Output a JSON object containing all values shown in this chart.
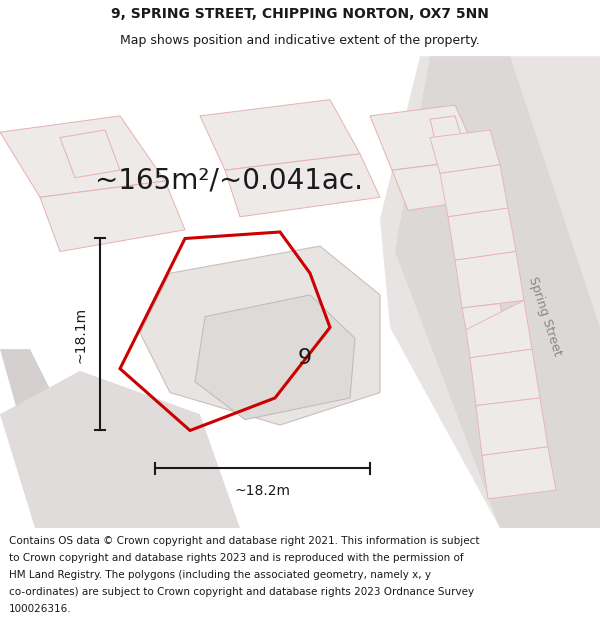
{
  "title_line1": "9, SPRING STREET, CHIPPING NORTON, OX7 5NN",
  "title_line2": "Map shows position and indicative extent of the property.",
  "area_text": "~165m²/~0.041ac.",
  "label_9": "9",
  "label_width": "~18.2m",
  "label_height": "~18.1m",
  "street_label": "Spring Street",
  "footer_lines": [
    "Contains OS data © Crown copyright and database right 2021. This information is subject",
    "to Crown copyright and database rights 2023 and is reproduced with the permission of",
    "HM Land Registry. The polygons (including the associated geometry, namely x, y",
    "co-ordinates) are subject to Crown copyright and database rights 2023 Ordnance Survey",
    "100026316."
  ],
  "map_bg": "#ffffff",
  "road_outline_color": "#e8b0b0",
  "grey_fill": "#e0dada",
  "light_grey_fill": "#eeeaea",
  "dark_grey_fill": "#d5cfcf",
  "white_fill": "#f8f8f8",
  "red_color": "#cc0000",
  "black_color": "#1a1a1a",
  "grey_text": "#aaaaaa",
  "title_fontsize": 10,
  "subtitle_fontsize": 9,
  "area_fontsize": 20,
  "label_9_fontsize": 16,
  "street_fontsize": 9,
  "measure_fontsize": 10,
  "footer_fontsize": 7.5
}
